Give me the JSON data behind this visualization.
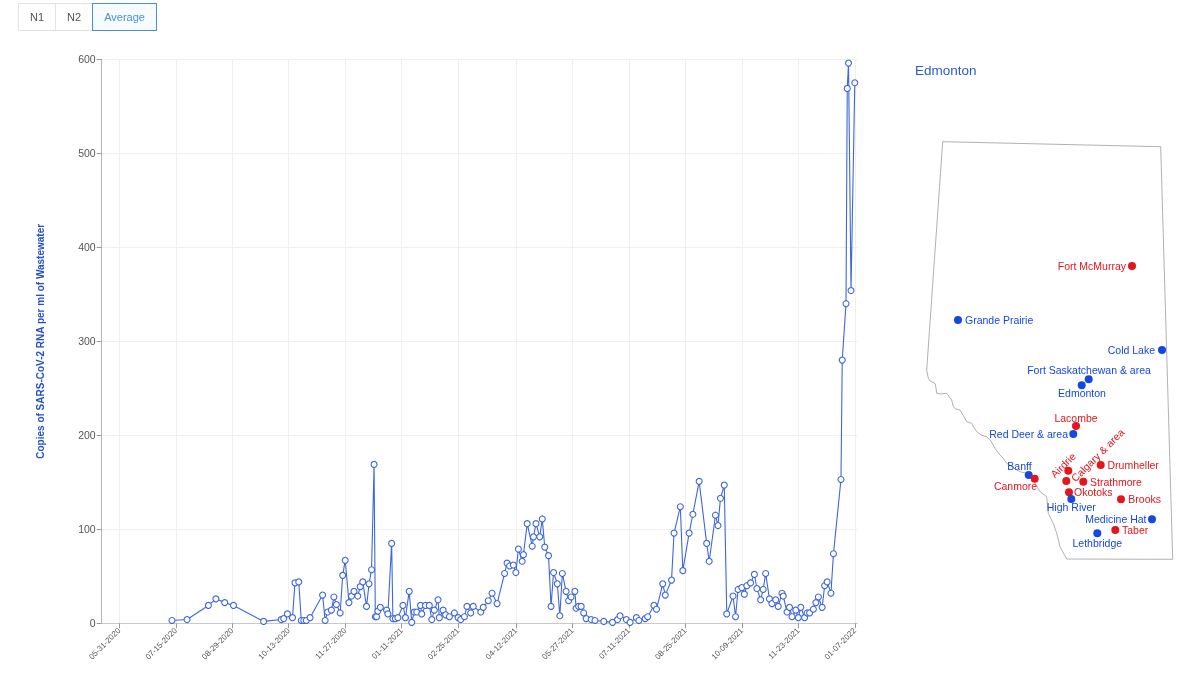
{
  "chart_data": [
    {
      "type": "line",
      "ylabel": "Copies of SARS-CoV-2 RNA per ml of Wastewater",
      "annotations": [
        "N1",
        "N2",
        "Average"
      ],
      "x": [
        "2020-07-12",
        "2020-07-24",
        "2020-08-10",
        "2020-08-16",
        "2020-08-23",
        "2020-08-30",
        "2020-09-23",
        "2020-10-07",
        "2020-10-09",
        "2020-10-12",
        "2020-10-16",
        "2020-10-18",
        "2020-10-21",
        "2020-10-23",
        "2020-10-25",
        "2020-10-27",
        "2020-10-30",
        "2020-11-09",
        "2020-11-11",
        "2020-11-13",
        "2020-11-16",
        "2020-11-18",
        "2020-11-20",
        "2020-11-23",
        "2020-11-25",
        "2020-11-27",
        "2020-11-30",
        "2020-12-02",
        "2020-12-04",
        "2020-12-07",
        "2020-12-09",
        "2020-12-11",
        "2020-12-14",
        "2020-12-16",
        "2020-12-18",
        "2020-12-20",
        "2020-12-21",
        "2020-12-22",
        "2020-12-23",
        "2020-12-25",
        "2020-12-30",
        "2020-12-31",
        "2021-01-03",
        "2021-01-04",
        "2021-01-06",
        "2021-01-08",
        "2021-01-12",
        "2021-01-14",
        "2021-01-17",
        "2021-01-19",
        "2021-01-21",
        "2021-01-23",
        "2021-01-26",
        "2021-01-27",
        "2021-01-30",
        "2021-02-02",
        "2021-02-04",
        "2021-02-06",
        "2021-02-09",
        "2021-02-10",
        "2021-02-13",
        "2021-02-15",
        "2021-02-18",
        "2021-02-22",
        "2021-02-25",
        "2021-02-27",
        "2021-03-02",
        "2021-03-04",
        "2021-03-07",
        "2021-03-09",
        "2021-03-15",
        "2021-03-17",
        "2021-03-21",
        "2021-03-24",
        "2021-03-28",
        "2021-04-03",
        "2021-04-05",
        "2021-04-07",
        "2021-04-10",
        "2021-04-12",
        "2021-04-14",
        "2021-04-17",
        "2021-04-18",
        "2021-04-21",
        "2021-04-25",
        "2021-04-26",
        "2021-04-28",
        "2021-05-01",
        "2021-05-03",
        "2021-05-05",
        "2021-05-08",
        "2021-05-10",
        "2021-05-12",
        "2021-05-15",
        "2021-05-17",
        "2021-05-19",
        "2021-05-22",
        "2021-05-24",
        "2021-05-26",
        "2021-05-29",
        "2021-05-30",
        "2021-06-01",
        "2021-06-03",
        "2021-06-05",
        "2021-06-07",
        "2021-06-11",
        "2021-06-14",
        "2021-06-21",
        "2021-06-28",
        "2021-07-02",
        "2021-07-04",
        "2021-07-09",
        "2021-07-12",
        "2021-07-17",
        "2021-07-19",
        "2021-07-24",
        "2021-07-26",
        "2021-07-31",
        "2021-08-02",
        "2021-08-07",
        "2021-08-09",
        "2021-08-14",
        "2021-08-16",
        "2021-08-21",
        "2021-08-23",
        "2021-08-28",
        "2021-08-31",
        "2021-09-05",
        "2021-09-11",
        "2021-09-13",
        "2021-09-18",
        "2021-09-20",
        "2021-09-22",
        "2021-09-25",
        "2021-09-27",
        "2021-10-02",
        "2021-10-04",
        "2021-10-06",
        "2021-10-09",
        "2021-10-11",
        "2021-10-13",
        "2021-10-16",
        "2021-10-19",
        "2021-10-21",
        "2021-10-24",
        "2021-10-26",
        "2021-10-28",
        "2021-10-31",
        "2021-11-02",
        "2021-11-05",
        "2021-11-07",
        "2021-11-10",
        "2021-11-11",
        "2021-11-14",
        "2021-11-16",
        "2021-11-18",
        "2021-11-21",
        "2021-11-23",
        "2021-11-25",
        "2021-11-28",
        "2021-11-30",
        "2021-12-02",
        "2021-12-05",
        "2021-12-07",
        "2021-12-09",
        "2021-12-12",
        "2021-12-14",
        "2021-12-16",
        "2021-12-19",
        "2021-12-21",
        "2021-12-27",
        "2021-12-28",
        "2021-12-31",
        "2022-01-01",
        "2022-01-02",
        "2022-01-04",
        "2022-01-07"
      ],
      "values": [
        3,
        4,
        19,
        26,
        22,
        19,
        2,
        4,
        5,
        10,
        6,
        43,
        44,
        3,
        3,
        3,
        6,
        30,
        3,
        12,
        14,
        28,
        20,
        11,
        51,
        67,
        22,
        29,
        34,
        29,
        39,
        44,
        18,
        42,
        57,
        169,
        7,
        7,
        13,
        17,
        14,
        10,
        85,
        5,
        5,
        6,
        19,
        6,
        34,
        1,
        12,
        12,
        19,
        10,
        19,
        19,
        4,
        14,
        25,
        6,
        14,
        9,
        7,
        11,
        6,
        4,
        7,
        18,
        11,
        18,
        12,
        17,
        24,
        32,
        21,
        53,
        64,
        61,
        62,
        54,
        79,
        66,
        73,
        106,
        82,
        92,
        106,
        92,
        111,
        81,
        72,
        18,
        54,
        42,
        8,
        53,
        34,
        24,
        28,
        34,
        16,
        18,
        18,
        11,
        5,
        4,
        3,
        2,
        1,
        4,
        8,
        4,
        1,
        6,
        3,
        5,
        7,
        19,
        15,
        42,
        30,
        46,
        96,
        124,
        56,
        96,
        116,
        151,
        85,
        66,
        115,
        104,
        133,
        147,
        10,
        29,
        7,
        36,
        38,
        31,
        40,
        43,
        52,
        37,
        25,
        36,
        53,
        26,
        21,
        25,
        18,
        32,
        29,
        12,
        17,
        7,
        14,
        6,
        17,
        6,
        11,
        11,
        15,
        22,
        28,
        17,
        40,
        44,
        32,
        74,
        153,
        280,
        340,
        569,
        596,
        354,
        575
      ],
      "color": "#3f67d9",
      "marker": "circle",
      "grid": true,
      "xlim": [
        "2020-05-17",
        "2022-01-09"
      ],
      "xticks": [
        {
          "value": "2020-05-31",
          "label": "05-31-2020"
        },
        {
          "value": "2020-07-15",
          "label": "07-15-2020"
        },
        {
          "value": "2020-08-29",
          "label": "08-29-2020"
        },
        {
          "value": "2020-10-13",
          "label": "10-13-2020"
        },
        {
          "value": "2020-11-27",
          "label": "11-27-2020"
        },
        {
          "value": "2021-01-11",
          "label": "01-11-2021"
        },
        {
          "value": "2021-02-25",
          "label": "02-25-2021"
        },
        {
          "value": "2021-04-12",
          "label": "04-12-2021"
        },
        {
          "value": "2021-05-27",
          "label": "05-27-2021"
        },
        {
          "value": "2021-07-11",
          "label": "07-11-2021"
        },
        {
          "value": "2021-08-25",
          "label": "08-25-2021"
        },
        {
          "value": "2021-10-09",
          "label": "10-09-2021"
        },
        {
          "value": "2021-11-23",
          "label": "11-23-2021"
        },
        {
          "value": "2022-01-07",
          "label": "01-07-2022"
        }
      ],
      "ylim": [
        0,
        600
      ],
      "yticks": [
        0,
        100,
        200,
        300,
        400,
        500,
        600
      ]
    },
    {
      "type": "other",
      "title": "Edmonton",
      "categories": [
        "Fort McMurray",
        "Grande Prairie",
        "Cold Lake",
        "Fort Saskatchewan & area",
        "Edmonton",
        "Lacombe",
        "Red Deer & area",
        "Banff",
        "Canmore",
        "Airdrie",
        "Calgary & area",
        "Drumheller",
        "Strathmore",
        "Okotoks",
        "High River",
        "Brooks",
        "Medicine Hat",
        "Taber",
        "Lethbridge"
      ],
      "colors": [
        "#e3161c",
        "#1448e2",
        "#1448e2",
        "#1448e2",
        "#1448e2",
        "#e3161c",
        "#1448e2",
        "#1448e2",
        "#e3161c",
        "#e3161c",
        "#e3161c",
        "#e3161c",
        "#e3161c",
        "#e3161c",
        "#1448e2",
        "#e3161c",
        "#1448e2",
        "#e3161c",
        "#1448e2"
      ]
    }
  ]
}
